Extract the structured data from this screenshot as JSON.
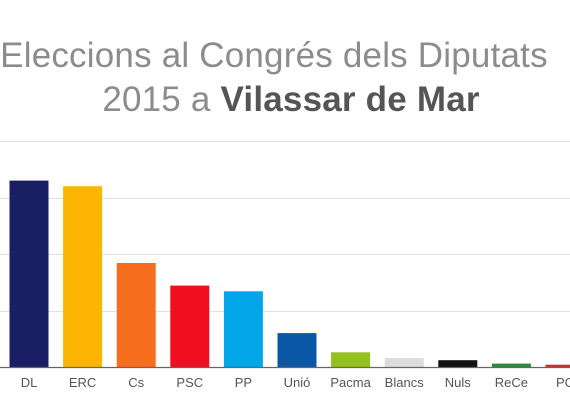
{
  "title": {
    "line1": "Eleccions al Congrés dels Diputats",
    "line2_prefix": "2015 a ",
    "line2_emph": "Vilassar de Mar"
  },
  "chart_data": {
    "type": "bar",
    "categories": [
      "DL",
      "ERC",
      "Cs",
      "PSC",
      "PP",
      "Unió",
      "Pacma",
      "Blancs",
      "Nuls",
      "ReCe",
      "PC"
    ],
    "values": [
      1650,
      1600,
      920,
      720,
      670,
      300,
      130,
      80,
      60,
      30,
      20
    ],
    "colors": [
      "#1a1f63",
      "#fbb500",
      "#f76d1e",
      "#ef0f1e",
      "#00a6e8",
      "#0a57a6",
      "#95c11f",
      "#dddddd",
      "#111111",
      "#2a8a3c",
      "#c9302c"
    ],
    "ylim": [
      0,
      2000
    ],
    "grid": true,
    "gridlines": [
      0,
      500,
      1000,
      1500
    ],
    "axis_color": "#666666",
    "grid_color": "#e0e0e0",
    "label_color": "#555555"
  }
}
